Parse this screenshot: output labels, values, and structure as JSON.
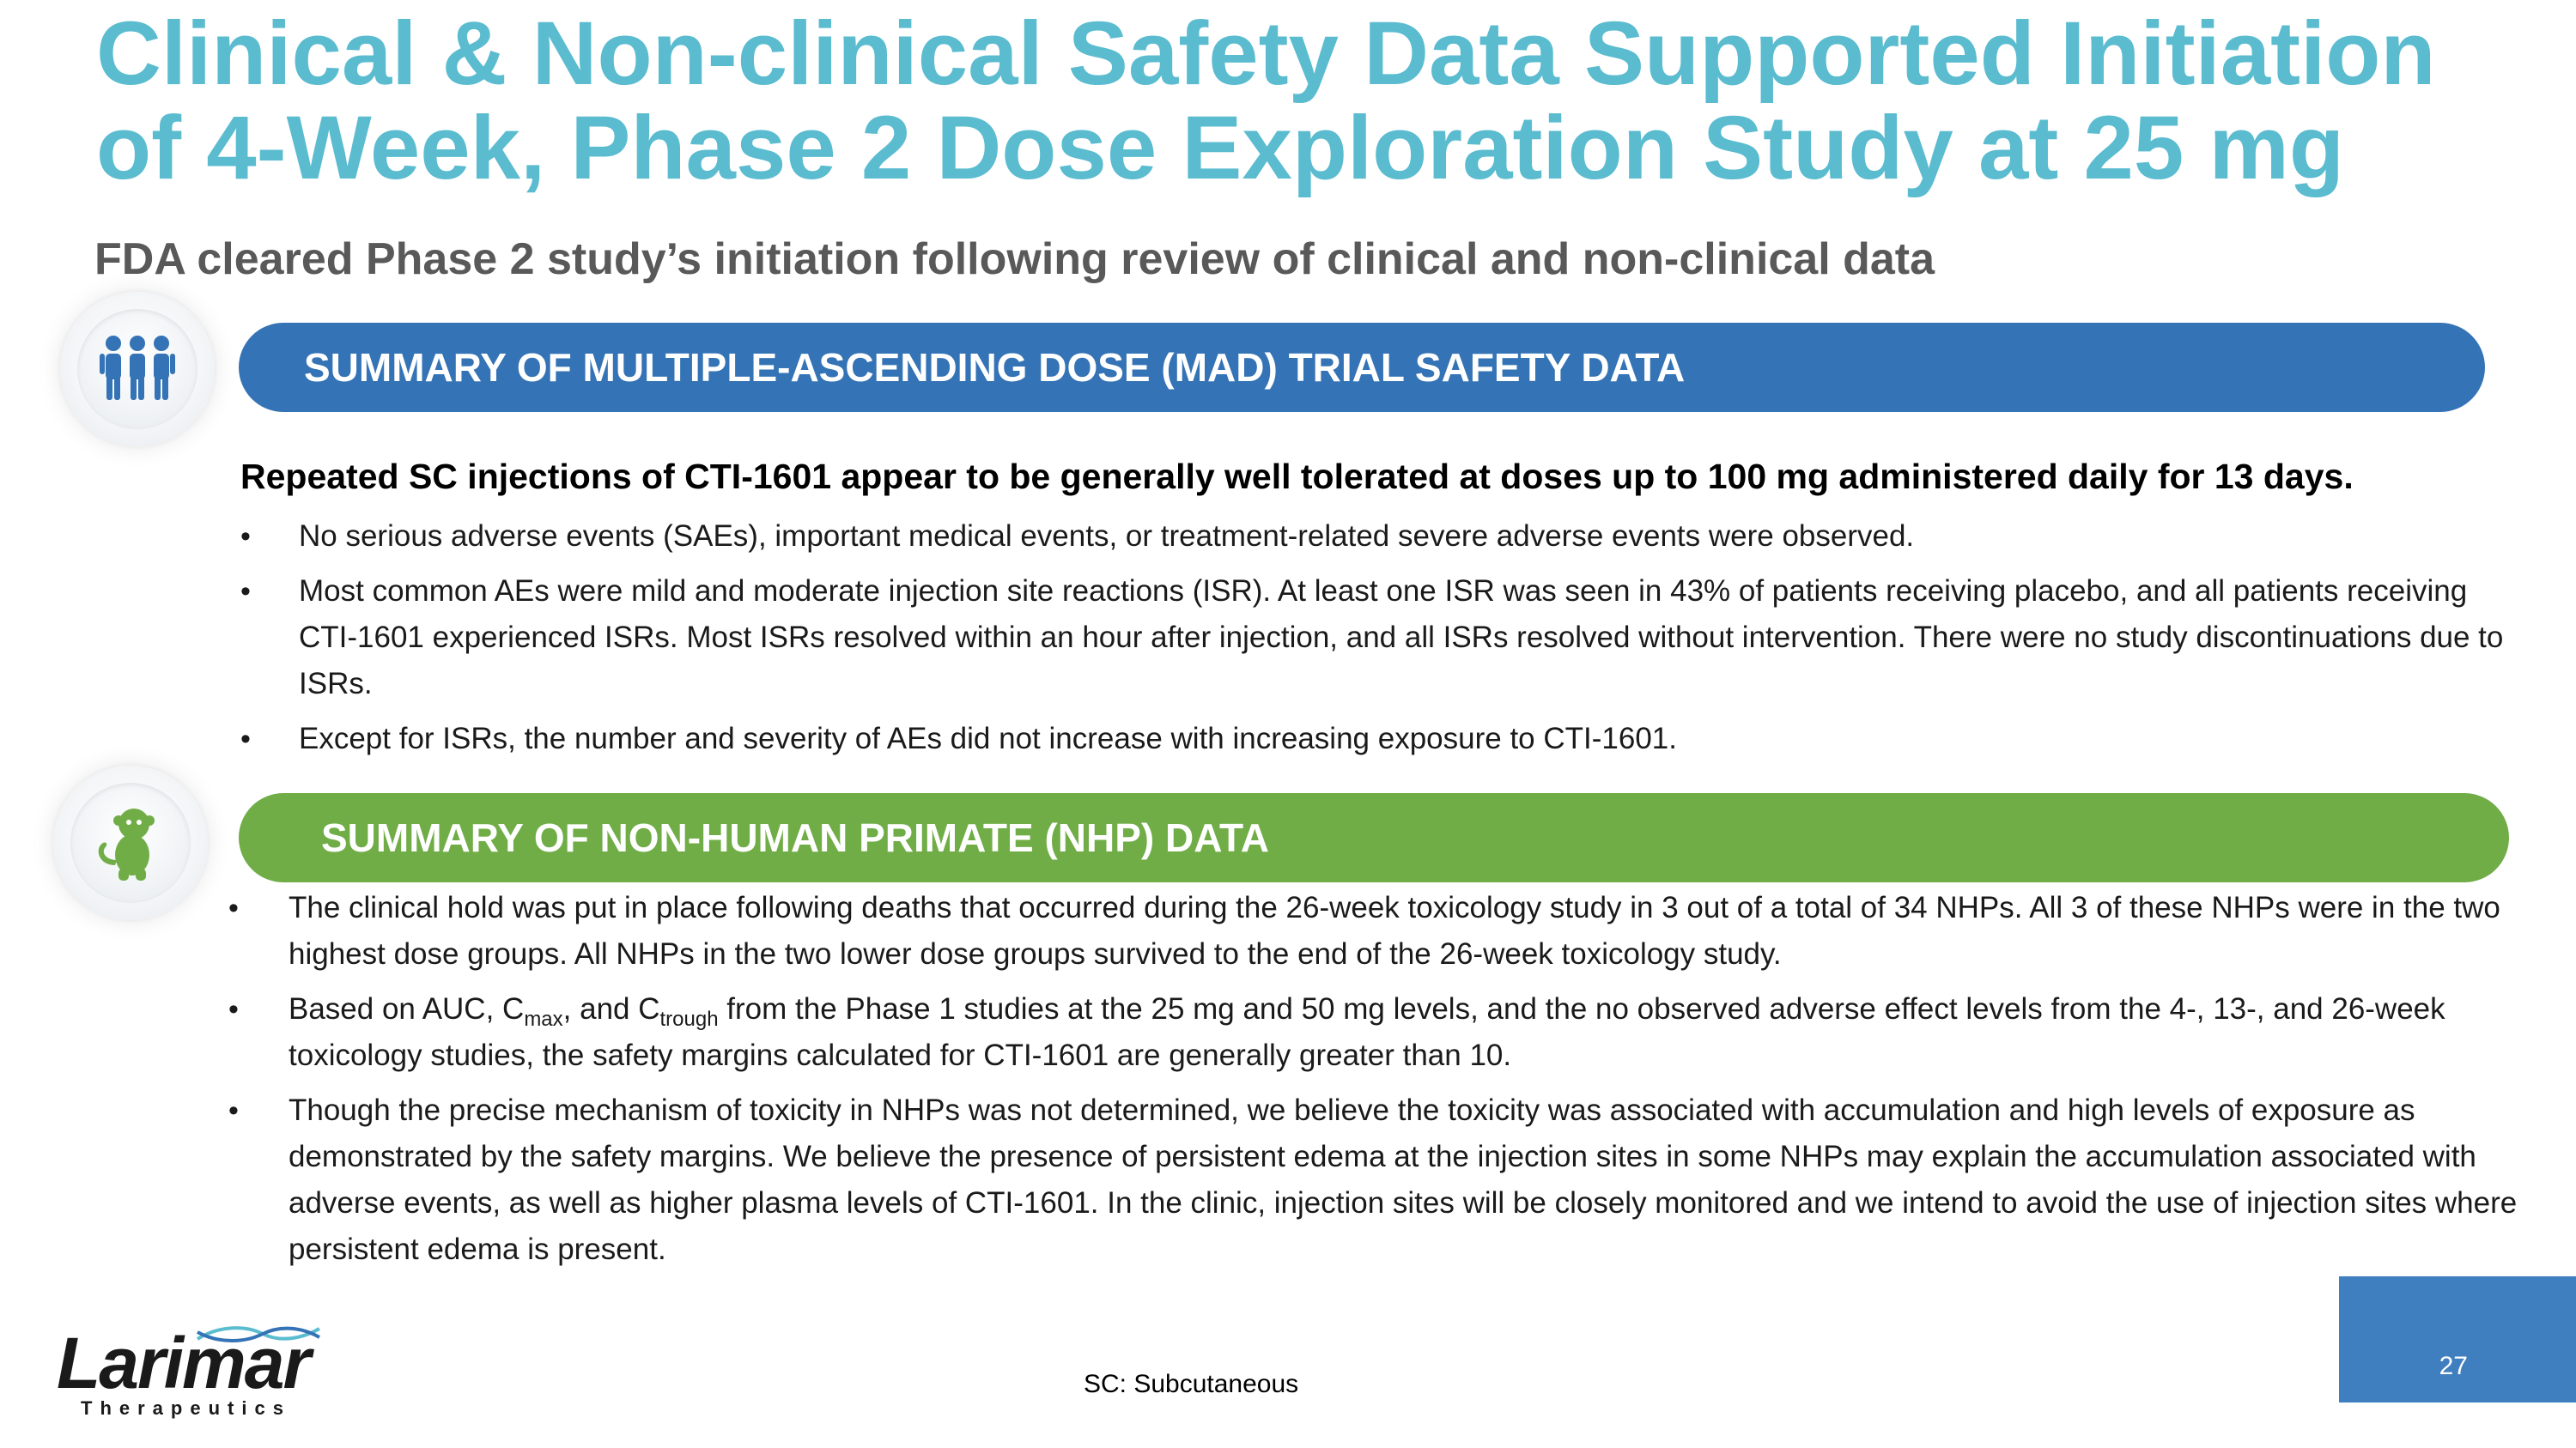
{
  "title": "Clinical & Non-clinical Safety Data Supported Initiation of 4-Week, Phase 2 Dose Exploration Study at 25 mg",
  "subtitle": "FDA cleared Phase 2 study’s initiation following review of clinical and non-clinical data",
  "mad": {
    "icon": "people-group-icon",
    "banner": "SUMMARY OF MULTIPLE-ASCENDING DOSE (MAD) TRIAL SAFETY DATA",
    "lead": "Repeated SC injections of CTI-1601 appear to be generally well tolerated at doses up to 100 mg administered daily for 13 days.",
    "bullets": [
      "No serious adverse events (SAEs), important medical events, or treatment-related severe adverse events were observed.",
      "Most common AEs were mild and moderate injection site reactions (ISR). At least one ISR was seen in 43% of patients receiving placebo, and all patients receiving CTI-1601 experienced ISRs. Most ISRs resolved within an hour after injection, and all ISRs resolved without intervention. There were no study discontinuations due to ISRs.",
      "Except for ISRs, the number and severity of AEs did not increase with increasing exposure to CTI-1601."
    ]
  },
  "nhp": {
    "icon": "monkey-icon",
    "banner": "SUMMARY OF NON-HUMAN PRIMATE (NHP) DATA",
    "bullet1": "The clinical hold was put in place following deaths that occurred during the 26-week toxicology study in 3 out of a total of 34 NHPs. All 3 of these NHPs were in the two highest dose groups. All NHPs in the two lower dose groups survived to the end of the 26-week toxicology study.",
    "bullet2": {
      "part1": "Based on AUC, C",
      "sub1": "max",
      "part2": ", and C",
      "sub2": "trough",
      "part3": " from the Phase 1 studies at the 25 mg and 50 mg levels, and the no observed adverse effect levels from the 4-, 13-, and 26-week toxicology studies, the safety margins calculated for CTI-1601 are generally greater than 10."
    },
    "bullet3": "Though the precise mechanism of toxicity in NHPs was not determined, we believe the toxicity was associated with accumulation and high levels of exposure as demonstrated by the safety margins. We believe the presence of persistent edema at the injection sites in some NHPs may explain the accumulation associated with adverse events, as well as higher plasma levels of CTI-1601. In the clinic, injection sites will be closely monitored and we intend to avoid the use of injection sites where persistent edema is present."
  },
  "bullet_char": "•",
  "logo": {
    "name": "Larimar",
    "sub": "Therapeutics"
  },
  "footnote": "SC: Subcutaneous",
  "page_number": "27",
  "colors": {
    "title": "#5bbcd0",
    "blue_banner": "#3473b5",
    "green_banner": "#70ad47",
    "page_box": "#3f7fbf"
  }
}
